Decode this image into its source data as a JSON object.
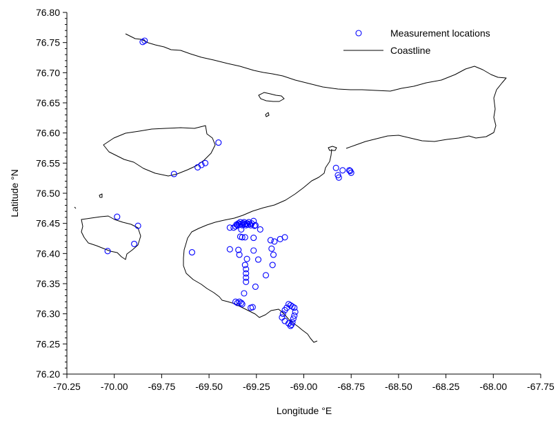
{
  "chart_data": {
    "type": "scatter",
    "x_axis": {
      "label": "Longitude °E",
      "range": [
        -70.25,
        -67.75
      ],
      "ticks": [
        "-70.25",
        "-70.00",
        "-69.75",
        "-69.50",
        "-69.25",
        "-69.00",
        "-68.75",
        "-68.50",
        "-68.25",
        "-68.00",
        "-67.75"
      ]
    },
    "y_axis": {
      "label": "Latitude °N",
      "range": [
        76.2,
        76.8
      ],
      "ticks": [
        "76.20",
        "76.25",
        "76.30",
        "76.35",
        "76.40",
        "76.45",
        "76.50",
        "76.55",
        "76.60",
        "76.65",
        "76.70",
        "76.75",
        "76.80"
      ]
    },
    "legend": {
      "placement": "top-right",
      "entries": [
        {
          "label": "Measurement locations",
          "marker": "circle"
        },
        {
          "label": "Coastline",
          "marker": "line"
        }
      ]
    },
    "colors": {
      "points": "#0000ff",
      "coastline": "#000000"
    },
    "series": [
      {
        "name": "Measurement locations",
        "points": [
          [
            -69.84,
            76.753
          ],
          [
            -69.85,
            76.751
          ],
          [
            -69.685,
            76.532
          ],
          [
            -69.56,
            76.543
          ],
          [
            -69.54,
            76.547
          ],
          [
            -69.52,
            76.55
          ],
          [
            -69.45,
            76.584
          ],
          [
            -70.035,
            76.404
          ],
          [
            -69.985,
            76.461
          ],
          [
            -69.895,
            76.416
          ],
          [
            -69.875,
            76.446
          ],
          [
            -69.59,
            76.402
          ],
          [
            -69.39,
            76.443
          ],
          [
            -69.37,
            76.443
          ],
          [
            -69.36,
            76.445
          ],
          [
            -69.355,
            76.448
          ],
          [
            -69.35,
            76.447
          ],
          [
            -69.345,
            76.45
          ],
          [
            -69.34,
            76.448
          ],
          [
            -69.335,
            76.452
          ],
          [
            -69.33,
            76.449
          ],
          [
            -69.325,
            76.447
          ],
          [
            -69.32,
            76.45
          ],
          [
            -69.315,
            76.452
          ],
          [
            -69.31,
            76.449
          ],
          [
            -69.305,
            76.447
          ],
          [
            -69.3,
            76.45
          ],
          [
            -69.295,
            76.448
          ],
          [
            -69.29,
            76.452
          ],
          [
            -69.285,
            76.449
          ],
          [
            -69.28,
            76.447
          ],
          [
            -69.275,
            76.45
          ],
          [
            -69.265,
            76.454
          ],
          [
            -69.26,
            76.446
          ],
          [
            -69.255,
            76.447
          ],
          [
            -69.33,
            76.44
          ],
          [
            -69.335,
            76.428
          ],
          [
            -69.325,
            76.427
          ],
          [
            -69.31,
            76.427
          ],
          [
            -69.39,
            76.407
          ],
          [
            -69.345,
            76.406
          ],
          [
            -69.34,
            76.398
          ],
          [
            -69.3,
            76.391
          ],
          [
            -69.31,
            76.381
          ],
          [
            -69.305,
            76.374
          ],
          [
            -69.305,
            76.367
          ],
          [
            -69.305,
            76.36
          ],
          [
            -69.305,
            76.353
          ],
          [
            -69.315,
            76.334
          ],
          [
            -69.265,
            76.426
          ],
          [
            -69.265,
            76.405
          ],
          [
            -69.23,
            76.44
          ],
          [
            -69.24,
            76.39
          ],
          [
            -69.255,
            76.345
          ],
          [
            -69.2,
            76.364
          ],
          [
            -69.175,
            76.422
          ],
          [
            -69.155,
            76.42
          ],
          [
            -69.17,
            76.408
          ],
          [
            -69.16,
            76.398
          ],
          [
            -69.165,
            76.381
          ],
          [
            -69.125,
            76.424
          ],
          [
            -69.1,
            76.427
          ],
          [
            -69.36,
            76.32
          ],
          [
            -69.35,
            76.318
          ],
          [
            -69.34,
            76.32
          ],
          [
            -69.33,
            76.318
          ],
          [
            -69.325,
            76.316
          ],
          [
            -69.28,
            76.31
          ],
          [
            -69.27,
            76.311
          ],
          [
            -69.11,
            76.3
          ],
          [
            -69.115,
            76.294
          ],
          [
            -69.1,
            76.288
          ],
          [
            -69.09,
            76.31
          ],
          [
            -69.08,
            76.316
          ],
          [
            -69.07,
            76.314
          ],
          [
            -69.06,
            76.312
          ],
          [
            -69.05,
            76.31
          ],
          [
            -69.045,
            76.303
          ],
          [
            -69.05,
            76.297
          ],
          [
            -69.055,
            76.292
          ],
          [
            -69.06,
            76.286
          ],
          [
            -69.065,
            76.282
          ],
          [
            -69.07,
            76.28
          ],
          [
            -69.08,
            76.284
          ],
          [
            -69.1,
            76.306
          ],
          [
            -68.83,
            76.542
          ],
          [
            -68.82,
            76.53
          ],
          [
            -68.815,
            76.526
          ],
          [
            -68.795,
            76.538
          ],
          [
            -68.76,
            76.538
          ],
          [
            -68.75,
            76.534
          ],
          [
            -68.755,
            76.537
          ]
        ]
      }
    ]
  }
}
